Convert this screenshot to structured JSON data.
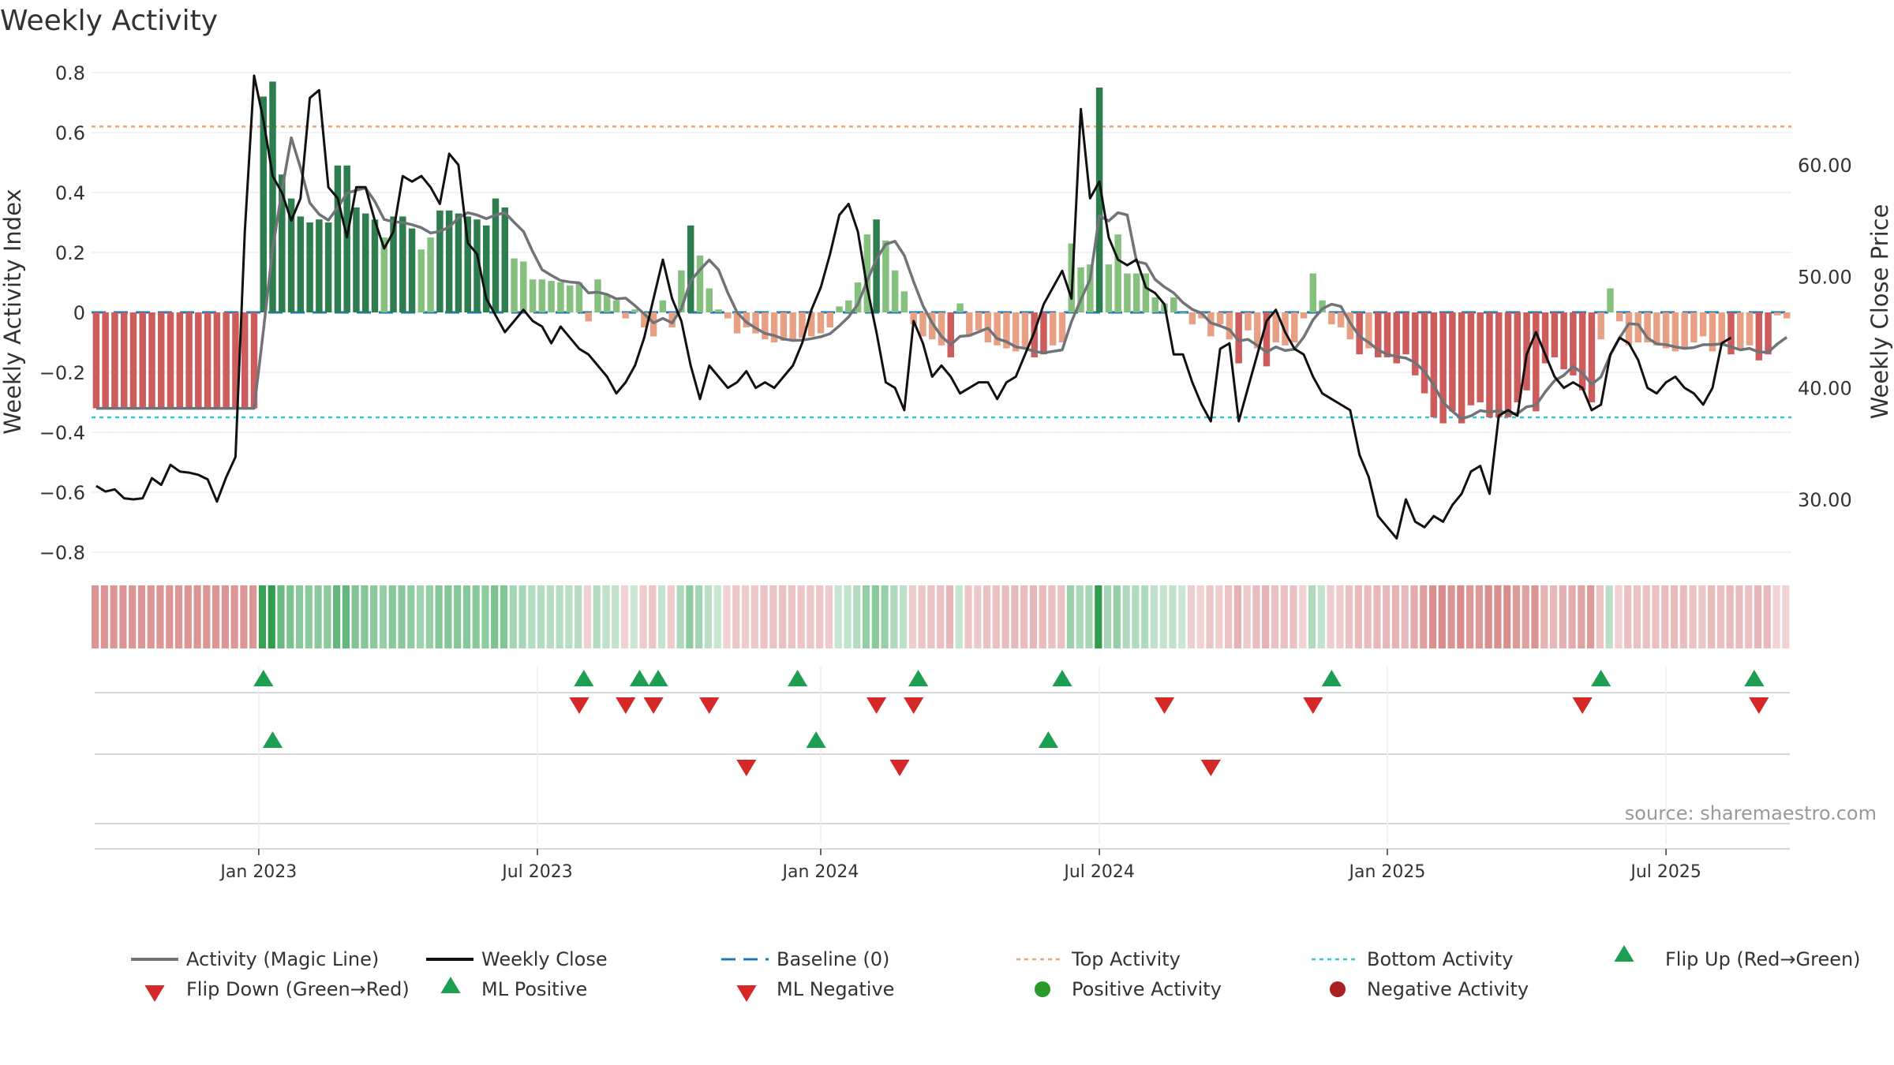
{
  "chart_data": {
    "type": "bar",
    "title": "Weekly Activity",
    "ylabel": "Weekly Activity Index",
    "y2label": "Weekly Close Price",
    "ylim": [
      -0.82,
      0.82
    ],
    "y2lim": [
      24.7,
      69.5
    ],
    "yticks": [
      "0.8",
      "0.6",
      "0.4",
      "0.2",
      "0",
      "−0.2",
      "−0.4",
      "−0.6",
      "−0.8"
    ],
    "y2ticks": [
      "60.00",
      "50.00",
      "40.00",
      "30.00"
    ],
    "x_range_weeks": [
      0,
      183
    ],
    "x_ticks": [
      {
        "label": "Jan 2023",
        "week": 17.5
      },
      {
        "label": "Jul 2023",
        "week": 47.5
      },
      {
        "label": "Jan 2024",
        "week": 78
      },
      {
        "label": "Jul 2024",
        "week": 108
      },
      {
        "label": "Jan 2025",
        "week": 139
      },
      {
        "label": "Jul 2025",
        "week": 169
      }
    ],
    "reference_lines": {
      "top": 0.62,
      "bottom": -0.35,
      "baseline": 0
    },
    "activity_keyframes": [
      [
        0,
        -0.32
      ],
      [
        17,
        -0.32
      ],
      [
        18,
        0.72
      ],
      [
        19,
        0.77
      ],
      [
        20,
        0.46
      ],
      [
        21,
        0.38
      ],
      [
        22,
        0.32
      ],
      [
        23,
        0.3
      ],
      [
        24,
        0.31
      ],
      [
        25,
        0.3
      ],
      [
        26,
        0.49
      ],
      [
        27,
        0.49
      ],
      [
        28,
        0.35
      ],
      [
        29,
        0.33
      ],
      [
        30,
        0.31
      ],
      [
        31,
        0.25
      ],
      [
        32,
        0.32
      ],
      [
        33,
        0.32
      ],
      [
        34,
        0.28
      ],
      [
        35,
        0.21
      ],
      [
        36,
        0.25
      ],
      [
        37,
        0.34
      ],
      [
        38,
        0.34
      ],
      [
        39,
        0.33
      ],
      [
        40,
        0.32
      ],
      [
        41,
        0.31
      ],
      [
        42,
        0.29
      ],
      [
        43,
        0.38
      ],
      [
        44,
        0.35
      ],
      [
        45,
        0.18
      ],
      [
        46,
        0.17
      ],
      [
        47,
        0.11
      ],
      [
        48,
        0.11
      ],
      [
        50,
        0.1
      ],
      [
        51,
        0.09
      ],
      [
        52,
        0.1
      ],
      [
        53,
        -0.03
      ],
      [
        54,
        0.11
      ],
      [
        55,
        0.06
      ],
      [
        56,
        0.04
      ],
      [
        57,
        -0.02
      ],
      [
        58,
        0.01
      ],
      [
        59,
        -0.05
      ],
      [
        60,
        -0.08
      ],
      [
        61,
        0.04
      ],
      [
        62,
        -0.05
      ],
      [
        63,
        0.14
      ],
      [
        64,
        0.29
      ],
      [
        65,
        0.19
      ],
      [
        66,
        0.08
      ],
      [
        67,
        0.01
      ],
      [
        68,
        -0.02
      ],
      [
        69,
        -0.07
      ],
      [
        70,
        -0.05
      ],
      [
        72,
        -0.09
      ],
      [
        73,
        -0.1
      ],
      [
        75,
        -0.09
      ],
      [
        77,
        -0.08
      ],
      [
        78,
        -0.07
      ],
      [
        79,
        -0.05
      ],
      [
        80,
        0.02
      ],
      [
        81,
        0.04
      ],
      [
        82,
        0.1
      ],
      [
        83,
        0.26
      ],
      [
        84,
        0.31
      ],
      [
        85,
        0.24
      ],
      [
        86,
        0.14
      ],
      [
        87,
        0.07
      ],
      [
        88,
        -0.04
      ],
      [
        89,
        -0.08
      ],
      [
        90,
        -0.09
      ],
      [
        91,
        -0.11
      ],
      [
        92,
        -0.15
      ],
      [
        93,
        0.03
      ],
      [
        94,
        -0.08
      ],
      [
        95,
        -0.06
      ],
      [
        96,
        -0.1
      ],
      [
        97,
        -0.11
      ],
      [
        98,
        -0.12
      ],
      [
        99,
        -0.13
      ],
      [
        100,
        -0.12
      ],
      [
        101,
        -0.15
      ],
      [
        102,
        -0.14
      ],
      [
        103,
        -0.11
      ],
      [
        104,
        -0.1
      ],
      [
        105,
        0.23
      ],
      [
        106,
        0.15
      ],
      [
        107,
        0.16
      ],
      [
        108,
        0.75
      ],
      [
        109,
        0.16
      ],
      [
        110,
        0.26
      ],
      [
        111,
        0.13
      ],
      [
        112,
        0.13
      ],
      [
        113,
        0.13
      ],
      [
        114,
        0.05
      ],
      [
        115,
        0.03
      ],
      [
        116,
        0.05
      ],
      [
        117,
        0.0
      ],
      [
        118,
        -0.04
      ],
      [
        119,
        -0.02
      ],
      [
        120,
        -0.08
      ],
      [
        121,
        -0.04
      ],
      [
        122,
        -0.09
      ],
      [
        123,
        -0.17
      ],
      [
        124,
        -0.06
      ],
      [
        125,
        -0.12
      ],
      [
        126,
        -0.18
      ],
      [
        127,
        -0.1
      ],
      [
        128,
        -0.11
      ],
      [
        129,
        -0.1
      ],
      [
        130,
        -0.02
      ],
      [
        131,
        0.13
      ],
      [
        132,
        0.04
      ],
      [
        133,
        -0.04
      ],
      [
        134,
        -0.05
      ],
      [
        135,
        -0.09
      ],
      [
        136,
        -0.14
      ],
      [
        137,
        -0.12
      ],
      [
        138,
        -0.15
      ],
      [
        139,
        -0.15
      ],
      [
        140,
        -0.17
      ],
      [
        141,
        -0.14
      ],
      [
        142,
        -0.21
      ],
      [
        143,
        -0.27
      ],
      [
        144,
        -0.35
      ],
      [
        145,
        -0.37
      ],
      [
        146,
        -0.33
      ],
      [
        147,
        -0.37
      ],
      [
        148,
        -0.31
      ],
      [
        149,
        -0.3
      ],
      [
        150,
        -0.35
      ],
      [
        151,
        -0.35
      ],
      [
        152,
        -0.35
      ],
      [
        153,
        -0.3
      ],
      [
        154,
        -0.26
      ],
      [
        155,
        -0.33
      ],
      [
        156,
        -0.17
      ],
      [
        157,
        -0.15
      ],
      [
        158,
        -0.19
      ],
      [
        159,
        -0.21
      ],
      [
        160,
        -0.26
      ],
      [
        161,
        -0.3
      ],
      [
        162,
        -0.09
      ],
      [
        163,
        0.08
      ],
      [
        164,
        -0.03
      ],
      [
        165,
        -0.11
      ],
      [
        166,
        -0.1
      ],
      [
        167,
        -0.1
      ],
      [
        168,
        -0.11
      ],
      [
        169,
        -0.12
      ],
      [
        170,
        -0.13
      ],
      [
        171,
        -0.12
      ],
      [
        172,
        -0.1
      ],
      [
        173,
        -0.08
      ],
      [
        174,
        -0.13
      ],
      [
        175,
        -0.11
      ],
      [
        176,
        -0.14
      ],
      [
        177,
        -0.12
      ],
      [
        178,
        -0.11
      ],
      [
        179,
        -0.16
      ],
      [
        180,
        -0.14
      ],
      [
        181,
        -0.01
      ],
      [
        182,
        -0.02
      ]
    ],
    "close_keyframes": [
      [
        0,
        31.2
      ],
      [
        1,
        30.7
      ],
      [
        2,
        30.9
      ],
      [
        3,
        30.1
      ],
      [
        4,
        30.0
      ],
      [
        5,
        30.1
      ],
      [
        6,
        31.9
      ],
      [
        7,
        31.3
      ],
      [
        8,
        33.1
      ],
      [
        9,
        32.5
      ],
      [
        10,
        32.4
      ],
      [
        11,
        32.2
      ],
      [
        12,
        31.8
      ],
      [
        13,
        29.8
      ],
      [
        14,
        32.0
      ],
      [
        15,
        33.8
      ],
      [
        16,
        54.0
      ],
      [
        17,
        68.0
      ],
      [
        18,
        64.0
      ],
      [
        19,
        59.0
      ],
      [
        20,
        57.5
      ],
      [
        21,
        55.0
      ],
      [
        22,
        57.0
      ],
      [
        23,
        66.0
      ],
      [
        24,
        66.7
      ],
      [
        25,
        58.0
      ],
      [
        26,
        57.0
      ],
      [
        27,
        53.5
      ],
      [
        28,
        58.0
      ],
      [
        29,
        58.0
      ],
      [
        30,
        55.0
      ],
      [
        31,
        52.5
      ],
      [
        32,
        54.0
      ],
      [
        33,
        59.0
      ],
      [
        34,
        58.5
      ],
      [
        35,
        59.0
      ],
      [
        36,
        58.0
      ],
      [
        37,
        56.5
      ],
      [
        38,
        61.0
      ],
      [
        39,
        60.0
      ],
      [
        40,
        53.0
      ],
      [
        41,
        52.0
      ],
      [
        42,
        48.0
      ],
      [
        43,
        46.5
      ],
      [
        44,
        45.0
      ],
      [
        45,
        46.0
      ],
      [
        46,
        47.0
      ],
      [
        47,
        46.0
      ],
      [
        48,
        45.5
      ],
      [
        49,
        44.0
      ],
      [
        50,
        45.5
      ],
      [
        51,
        44.5
      ],
      [
        52,
        43.5
      ],
      [
        53,
        43.0
      ],
      [
        54,
        42.0
      ],
      [
        55,
        41.0
      ],
      [
        56,
        39.5
      ],
      [
        57,
        40.5
      ],
      [
        58,
        42.0
      ],
      [
        59,
        44.5
      ],
      [
        60,
        48.0
      ],
      [
        61,
        51.5
      ],
      [
        62,
        48.0
      ],
      [
        63,
        46.0
      ],
      [
        64,
        42.0
      ],
      [
        65,
        39.0
      ],
      [
        66,
        42.0
      ],
      [
        67,
        41.0
      ],
      [
        68,
        40.0
      ],
      [
        69,
        40.5
      ],
      [
        70,
        41.5
      ],
      [
        71,
        40.0
      ],
      [
        72,
        40.5
      ],
      [
        73,
        40.0
      ],
      [
        74,
        41.0
      ],
      [
        75,
        42.0
      ],
      [
        76,
        44.0
      ],
      [
        77,
        47.0
      ],
      [
        78,
        49.0
      ],
      [
        79,
        52.0
      ],
      [
        80,
        55.5
      ],
      [
        81,
        56.5
      ],
      [
        82,
        54.0
      ],
      [
        83,
        49.0
      ],
      [
        84,
        45.0
      ],
      [
        85,
        40.5
      ],
      [
        86,
        40.0
      ],
      [
        87,
        38.0
      ],
      [
        88,
        46.0
      ],
      [
        89,
        44.0
      ],
      [
        90,
        41.0
      ],
      [
        91,
        42.0
      ],
      [
        92,
        41.0
      ],
      [
        93,
        39.5
      ],
      [
        94,
        40.0
      ],
      [
        95,
        40.5
      ],
      [
        96,
        40.5
      ],
      [
        97,
        39.0
      ],
      [
        98,
        40.5
      ],
      [
        99,
        41.0
      ],
      [
        100,
        43.0
      ],
      [
        101,
        45.0
      ],
      [
        102,
        47.5
      ],
      [
        103,
        49.0
      ],
      [
        104,
        50.5
      ],
      [
        105,
        48.0
      ],
      [
        106,
        65.0
      ],
      [
        107,
        57.0
      ],
      [
        108,
        58.5
      ],
      [
        109,
        53.5
      ],
      [
        110,
        51.5
      ],
      [
        111,
        51.0
      ],
      [
        112,
        51.5
      ],
      [
        113,
        49.0
      ],
      [
        114,
        48.5
      ],
      [
        115,
        47.5
      ],
      [
        116,
        43.0
      ],
      [
        117,
        43.0
      ],
      [
        118,
        40.5
      ],
      [
        119,
        38.5
      ],
      [
        120,
        37.0
      ],
      [
        121,
        43.5
      ],
      [
        122,
        44.0
      ],
      [
        123,
        37.0
      ],
      [
        124,
        40.0
      ],
      [
        125,
        43.0
      ],
      [
        126,
        46.0
      ],
      [
        127,
        47.0
      ],
      [
        128,
        45.0
      ],
      [
        129,
        43.5
      ],
      [
        130,
        43.0
      ],
      [
        131,
        41.0
      ],
      [
        132,
        39.5
      ],
      [
        133,
        39.0
      ],
      [
        134,
        38.5
      ],
      [
        135,
        38.0
      ],
      [
        136,
        34.0
      ],
      [
        137,
        32.0
      ],
      [
        138,
        28.5
      ],
      [
        139,
        27.5
      ],
      [
        140,
        26.5
      ],
      [
        141,
        30.0
      ],
      [
        142,
        28.0
      ],
      [
        143,
        27.5
      ],
      [
        144,
        28.5
      ],
      [
        145,
        28.0
      ],
      [
        146,
        29.5
      ],
      [
        147,
        30.5
      ],
      [
        148,
        32.5
      ],
      [
        149,
        33.0
      ],
      [
        150,
        30.5
      ],
      [
        151,
        37.5
      ],
      [
        152,
        38.0
      ],
      [
        153,
        37.5
      ],
      [
        154,
        43.0
      ],
      [
        155,
        45.0
      ],
      [
        156,
        43.0
      ],
      [
        157,
        41.0
      ],
      [
        158,
        40.0
      ],
      [
        159,
        40.5
      ],
      [
        160,
        40.0
      ],
      [
        161,
        38.0
      ],
      [
        162,
        38.5
      ],
      [
        163,
        43.0
      ],
      [
        164,
        44.5
      ],
      [
        165,
        44.0
      ],
      [
        166,
        42.5
      ],
      [
        167,
        40.0
      ],
      [
        168,
        39.5
      ],
      [
        169,
        40.5
      ],
      [
        170,
        41.0
      ],
      [
        171,
        40.0
      ],
      [
        172,
        39.5
      ],
      [
        173,
        38.5
      ],
      [
        174,
        40.0
      ],
      [
        175,
        44.0
      ],
      [
        176,
        44.5
      ]
    ],
    "strip_columns": 183,
    "marker_rows": {
      "flip_up": [
        18,
        52.5,
        58.5,
        60.5,
        75.5,
        88.5,
        104,
        133,
        162,
        178.5
      ],
      "flip_down": [
        52,
        57,
        60,
        66,
        84,
        88,
        115,
        131,
        160,
        179
      ],
      "ml_positive": [
        19,
        77.5,
        102.5
      ],
      "ml_negative": [
        70,
        86.5,
        120
      ]
    },
    "legend": [
      "Activity (Magic Line)",
      "Weekly Close",
      "Baseline (0)",
      "Top Activity",
      "Bottom Activity",
      "Flip Up (Red→Green)",
      "Flip Down (Green→Red)",
      "ML Positive",
      "ML Negative",
      "Positive Activity",
      "Negative Activity"
    ],
    "source": "source: sharemaestro.com",
    "colors": {
      "green_strong": "#2e7d4f",
      "green_light": "#85c07e",
      "red_strong": "#cd5c5c",
      "red_light": "#e8a085",
      "magic_line": "#707378",
      "close": "#111111",
      "baseline": "#1f77b4",
      "top": "#f0a070",
      "bottom": "#2ec8d0",
      "marker_up": "#1e9e52",
      "marker_down": "#d62828",
      "pos_dot": "#2a9a2a",
      "neg_dot": "#a82020"
    }
  }
}
